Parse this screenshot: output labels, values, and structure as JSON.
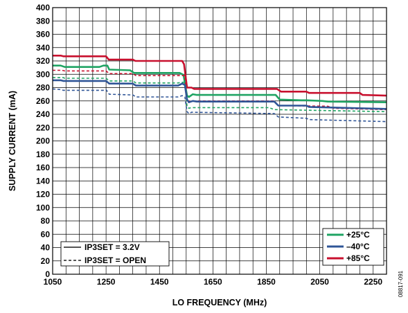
{
  "chart_data": {
    "type": "line",
    "title": "",
    "xlabel": "LO FREQUENCY (MHz)",
    "ylabel": "SUPPLY CURRENT (mA)",
    "xlim": [
      1050,
      2300
    ],
    "ylim": [
      0,
      400
    ],
    "x_ticks": [
      1050,
      1250,
      1450,
      1650,
      1850,
      2050,
      2250
    ],
    "y_ticks": [
      0,
      20,
      40,
      60,
      80,
      100,
      120,
      140,
      160,
      180,
      200,
      220,
      240,
      260,
      280,
      300,
      320,
      340,
      360,
      380,
      400
    ],
    "grid": true,
    "legend_temperature": {
      "placement": "bottom-right",
      "entries": [
        {
          "label": "+25°C",
          "color": "#1fa463"
        },
        {
          "label": "–40°C",
          "color": "#2f5597"
        },
        {
          "label": "+85°C",
          "color": "#c8102e"
        }
      ]
    },
    "legend_style": {
      "placement": "bottom-left",
      "entries": [
        {
          "label": "IP3SET = 3.2V",
          "style": "solid"
        },
        {
          "label": "IP3SET = OPEN",
          "style": "dashed"
        }
      ]
    },
    "series": [
      {
        "temperature": "+85°C",
        "ip3set": "3.2V",
        "color": "#c8102e",
        "dashed": false,
        "points": [
          [
            1050,
            328
          ],
          [
            1080,
            328
          ],
          [
            1090,
            327
          ],
          [
            1250,
            327
          ],
          [
            1260,
            322
          ],
          [
            1350,
            322
          ],
          [
            1360,
            320
          ],
          [
            1535,
            320
          ],
          [
            1542,
            315
          ],
          [
            1553,
            280
          ],
          [
            1570,
            280
          ],
          [
            1580,
            278
          ],
          [
            1890,
            278
          ],
          [
            1905,
            274
          ],
          [
            2000,
            274
          ],
          [
            2010,
            272
          ],
          [
            2200,
            272
          ],
          [
            2210,
            269
          ],
          [
            2300,
            268
          ]
        ]
      },
      {
        "temperature": "+25°C",
        "ip3set": "3.2V",
        "color": "#1fa463",
        "dashed": false,
        "points": [
          [
            1050,
            313
          ],
          [
            1080,
            313
          ],
          [
            1095,
            311
          ],
          [
            1225,
            311
          ],
          [
            1240,
            313
          ],
          [
            1255,
            313
          ],
          [
            1262,
            307
          ],
          [
            1340,
            306
          ],
          [
            1355,
            302
          ],
          [
            1525,
            302
          ],
          [
            1540,
            299
          ],
          [
            1553,
            268
          ],
          [
            1560,
            266
          ],
          [
            1575,
            270
          ],
          [
            1590,
            269
          ],
          [
            1885,
            269
          ],
          [
            1900,
            262
          ],
          [
            1980,
            261
          ],
          [
            2000,
            261
          ],
          [
            2060,
            260
          ],
          [
            2080,
            259
          ],
          [
            2300,
            258
          ]
        ]
      },
      {
        "temperature": "+85°C",
        "ip3set": "OPEN",
        "color": "#c8102e",
        "dashed": true,
        "points": [
          [
            1050,
            306
          ],
          [
            1085,
            306
          ],
          [
            1095,
            305
          ],
          [
            1250,
            305
          ],
          [
            1262,
            301
          ],
          [
            1350,
            301
          ],
          [
            1362,
            298
          ],
          [
            1545,
            298
          ],
          [
            1553,
            262
          ],
          [
            1565,
            259
          ],
          [
            1570,
            260
          ],
          [
            1880,
            260
          ],
          [
            1895,
            253
          ],
          [
            2080,
            252
          ],
          [
            2100,
            249
          ],
          [
            2300,
            247
          ]
        ]
      },
      {
        "temperature": "+25°C",
        "ip3set": "OPEN",
        "color": "#1fa463",
        "dashed": true,
        "points": [
          [
            1050,
            295
          ],
          [
            1090,
            295
          ],
          [
            1095,
            294
          ],
          [
            1250,
            294
          ],
          [
            1262,
            290
          ],
          [
            1350,
            290
          ],
          [
            1362,
            287
          ],
          [
            1520,
            287
          ],
          [
            1530,
            288
          ],
          [
            1545,
            288
          ],
          [
            1553,
            252
          ],
          [
            1560,
            249
          ],
          [
            1570,
            250
          ],
          [
            1860,
            250
          ],
          [
            1880,
            247
          ],
          [
            2300,
            244
          ]
        ]
      },
      {
        "temperature": "–40°C",
        "ip3set": "3.2V",
        "color": "#2f5597",
        "dashed": false,
        "points": [
          [
            1050,
            291
          ],
          [
            1080,
            291
          ],
          [
            1090,
            290
          ],
          [
            1250,
            290
          ],
          [
            1262,
            286
          ],
          [
            1350,
            286
          ],
          [
            1362,
            283
          ],
          [
            1520,
            283
          ],
          [
            1535,
            286
          ],
          [
            1545,
            284
          ],
          [
            1553,
            262
          ],
          [
            1560,
            258
          ],
          [
            1575,
            260
          ],
          [
            1590,
            259
          ],
          [
            1880,
            259
          ],
          [
            1895,
            253
          ],
          [
            2000,
            253
          ],
          [
            2010,
            251
          ],
          [
            2300,
            248
          ]
        ]
      },
      {
        "temperature": "–40°C",
        "ip3set": "OPEN",
        "color": "#2f5597",
        "dashed": true,
        "points": [
          [
            1050,
            278
          ],
          [
            1080,
            277
          ],
          [
            1090,
            276
          ],
          [
            1240,
            276
          ],
          [
            1250,
            277
          ],
          [
            1262,
            270
          ],
          [
            1350,
            269
          ],
          [
            1362,
            266
          ],
          [
            1520,
            266
          ],
          [
            1535,
            268
          ],
          [
            1545,
            266
          ],
          [
            1553,
            244
          ],
          [
            1560,
            241
          ],
          [
            1570,
            243
          ],
          [
            1880,
            241
          ],
          [
            1895,
            236
          ],
          [
            2000,
            234
          ],
          [
            2010,
            232
          ],
          [
            2300,
            229
          ]
        ]
      }
    ]
  },
  "figure_code": "08817-091"
}
